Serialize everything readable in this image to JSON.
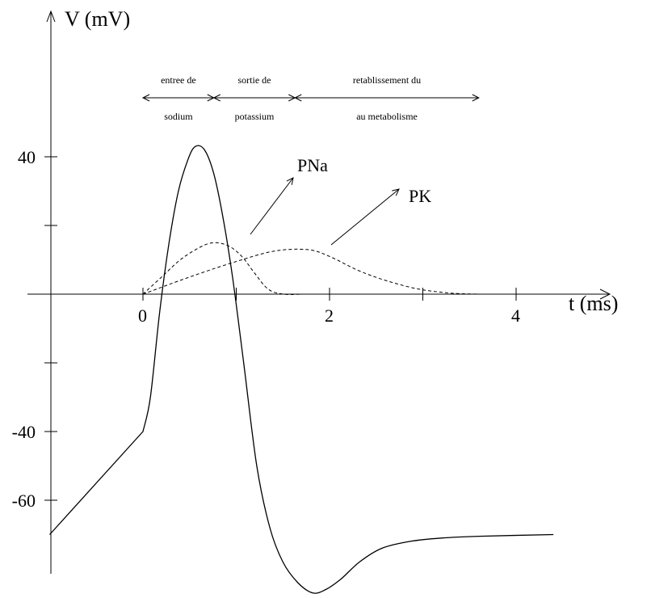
{
  "chart_data": {
    "type": "line",
    "ylabel": "V (mV)",
    "xlabel": "t (ms)",
    "x_ticks": [
      {
        "value": 0,
        "label": "0"
      },
      {
        "value": 1,
        "label": ""
      },
      {
        "value": 2,
        "label": "2"
      },
      {
        "value": 3,
        "label": ""
      },
      {
        "value": 4,
        "label": "4"
      }
    ],
    "y_ticks": [
      {
        "value": 40,
        "label": "40"
      },
      {
        "value": 20,
        "label": ""
      },
      {
        "value": -20,
        "label": ""
      },
      {
        "value": -40,
        "label": "-40"
      },
      {
        "value": -60,
        "label": "-60"
      }
    ],
    "xlim": [
      -1.0,
      5.3
    ],
    "ylim": [
      -88,
      83
    ],
    "series": [
      {
        "name": "",
        "style": "solid",
        "points": [
          [
            -1.0,
            -70
          ],
          [
            0.0,
            -40
          ],
          [
            0.08,
            -30
          ],
          [
            0.18,
            -5
          ],
          [
            0.28,
            15
          ],
          [
            0.38,
            30
          ],
          [
            0.48,
            39
          ],
          [
            0.56,
            43
          ],
          [
            0.66,
            42
          ],
          [
            0.76,
            35
          ],
          [
            0.86,
            22
          ],
          [
            0.96,
            5
          ],
          [
            1.08,
            -20
          ],
          [
            1.22,
            -50
          ],
          [
            1.36,
            -68
          ],
          [
            1.5,
            -78
          ],
          [
            1.66,
            -84
          ],
          [
            1.82,
            -87
          ],
          [
            1.96,
            -86
          ],
          [
            2.12,
            -83
          ],
          [
            2.32,
            -78
          ],
          [
            2.56,
            -74
          ],
          [
            2.86,
            -72
          ],
          [
            3.2,
            -71
          ],
          [
            3.6,
            -70.5
          ],
          [
            4.4,
            -70
          ]
        ]
      },
      {
        "name": "PNa",
        "style": "dashed",
        "points": [
          [
            0.0,
            0
          ],
          [
            0.2,
            5
          ],
          [
            0.4,
            10
          ],
          [
            0.6,
            13.5
          ],
          [
            0.76,
            15
          ],
          [
            0.92,
            14
          ],
          [
            1.06,
            11
          ],
          [
            1.2,
            6
          ],
          [
            1.34,
            1.5
          ],
          [
            1.5,
            0
          ],
          [
            1.7,
            0
          ]
        ]
      },
      {
        "name": "PK",
        "style": "dashed",
        "points": [
          [
            0.0,
            0
          ],
          [
            0.5,
            5
          ],
          [
            1.0,
            9.5
          ],
          [
            1.4,
            12.5
          ],
          [
            1.76,
            13
          ],
          [
            2.0,
            11
          ],
          [
            2.3,
            7
          ],
          [
            2.6,
            4
          ],
          [
            2.95,
            1.5
          ],
          [
            3.3,
            0.3
          ],
          [
            3.6,
            0
          ]
        ]
      }
    ],
    "annotations": [
      {
        "text": "PNa",
        "points_to_series": "PNa"
      },
      {
        "text": "PK",
        "points_to_series": "PK"
      }
    ],
    "phases": [
      {
        "top": "entree de",
        "bottom": "sodium",
        "from": 0.0,
        "to": 0.76
      },
      {
        "top": "sortie de",
        "bottom": "potassium",
        "from": 0.76,
        "to": 1.63
      },
      {
        "top": "retablissement du",
        "bottom": "au metabolisme",
        "from": 1.63,
        "to": 3.6
      }
    ],
    "grid": false,
    "legend": "none"
  }
}
